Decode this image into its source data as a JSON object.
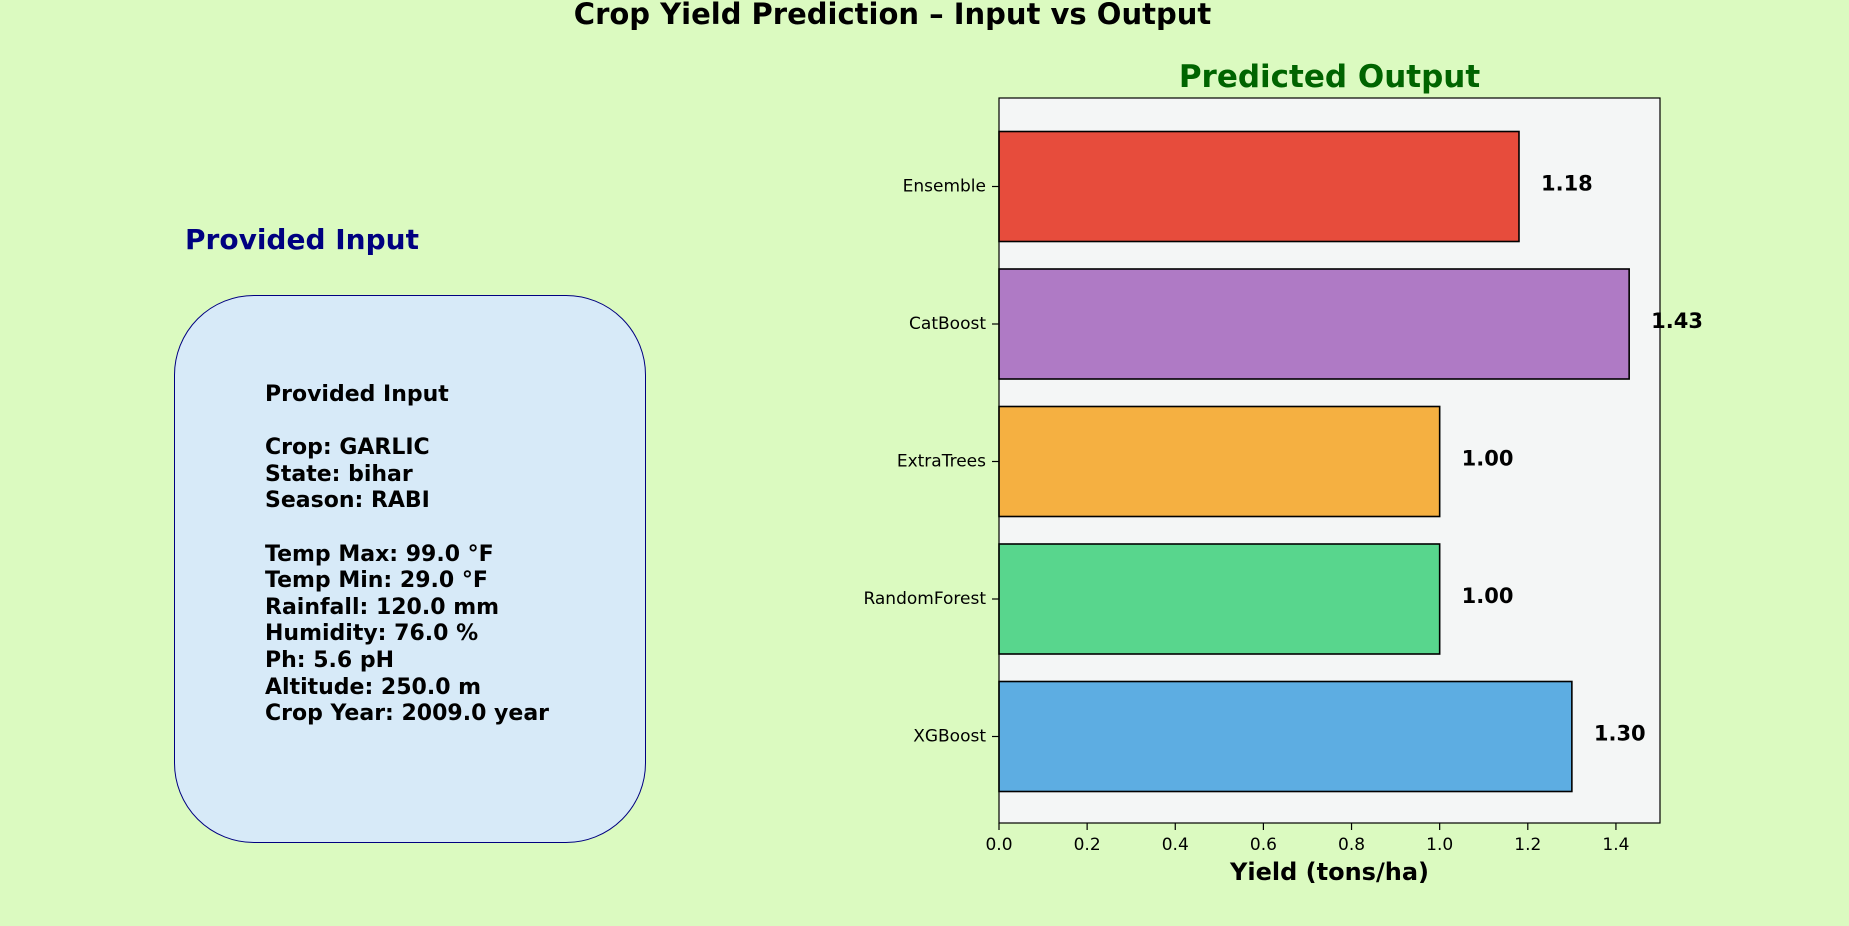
{
  "figure": {
    "title": "Crop Yield Prediction – Input vs Output"
  },
  "input_panel": {
    "title": "Provided Input",
    "heading": "Provided Input",
    "lines": [
      "",
      "Crop: GARLIC",
      "State: bihar",
      "Season: RABI",
      "",
      "Temp Max: 99.0 °F",
      "Temp Min: 29.0 °F",
      "Rainfall: 120.0 mm",
      "Humidity: 76.0 %",
      "Ph: 5.6 pH",
      "Altitude: 250.0 m",
      "Crop Year: 2009.0 year"
    ],
    "box_color": "#d7eaf8",
    "border_color": "#000080"
  },
  "chart_data": {
    "type": "bar",
    "orientation": "horizontal",
    "title": "Predicted Output",
    "title_color": "#006400",
    "xlabel": "Yield (tons/ha)",
    "ylabel": "",
    "xlim": [
      0,
      1.5
    ],
    "xticks": [
      "0.0",
      "0.2",
      "0.4",
      "0.6",
      "0.8",
      "1.0",
      "1.2",
      "1.4"
    ],
    "categories": [
      "XGBoost",
      "RandomForest",
      "ExtraTrees",
      "CatBoost",
      "Ensemble"
    ],
    "values": [
      1.3,
      1.0,
      1.0,
      1.43,
      1.18
    ],
    "value_labels": [
      "1.30",
      "1.00",
      "1.00",
      "1.43",
      "1.18"
    ],
    "colors": [
      "#5dade2",
      "#58d68d",
      "#f5b041",
      "#af7ac5",
      "#e74c3c"
    ],
    "plot_background": "#f4f6f6",
    "grid": false,
    "legend": "none"
  }
}
